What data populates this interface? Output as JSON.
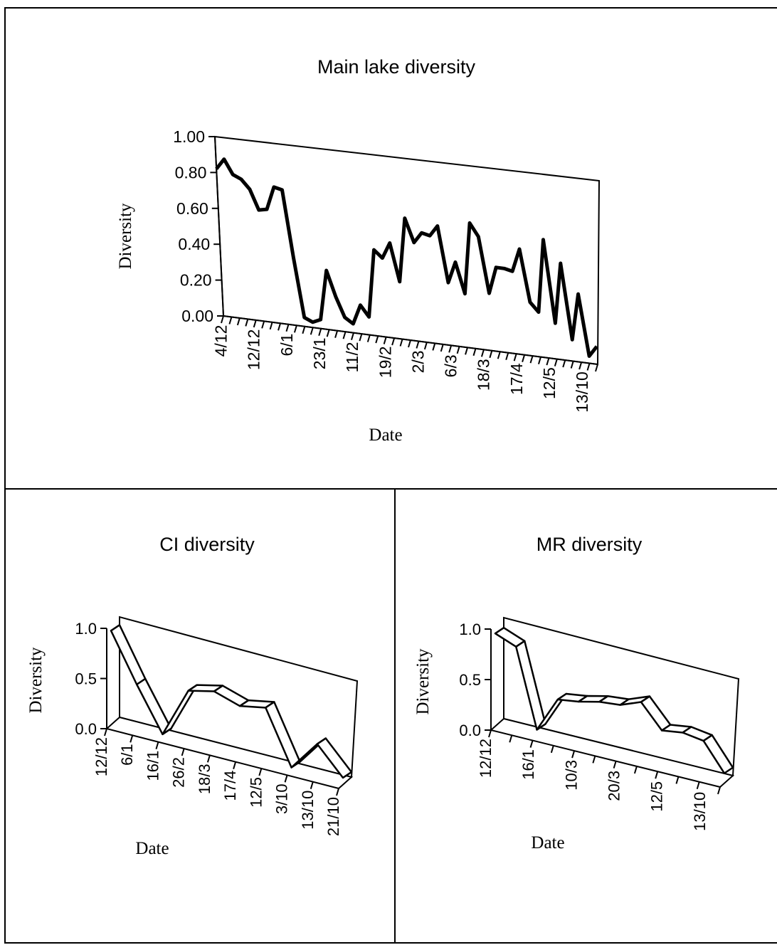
{
  "chart_data": [
    {
      "type": "line",
      "title": "Main lake diversity",
      "xlabel": "Date",
      "ylabel": "Diversity",
      "ylim": [
        0,
        1
      ],
      "y_ticks": [
        "0.00",
        "0.20",
        "0.40",
        "0.60",
        "0.80",
        "1.00"
      ],
      "x_tick_labels": [
        "4/12",
        "12/12",
        "6/1",
        "23/1",
        "11/2",
        "19/2",
        "2/3",
        "6/3",
        "18/3",
        "17/4",
        "12/5",
        "13/10"
      ],
      "grid": false,
      "legend": "none",
      "series": [
        {
          "color": "#000000",
          "values": [
            0.82,
            0.88,
            0.8,
            0.78,
            0.73,
            0.62,
            0.63,
            0.76,
            0.75,
            0.38,
            0.05,
            0.03,
            0.05,
            0.33,
            0.19,
            0.08,
            0.05,
            0.16,
            0.1,
            0.48,
            0.44,
            0.53,
            0.32,
            0.68,
            0.55,
            0.61,
            0.6,
            0.66,
            0.35,
            0.47,
            0.3,
            0.7,
            0.63,
            0.32,
            0.47,
            0.47,
            0.46,
            0.59,
            0.3,
            0.25,
            0.66,
            0.2,
            0.54,
            0.12,
            0.38,
            0.04,
            0.1
          ]
        }
      ]
    },
    {
      "type": "line",
      "title": "CI diversity",
      "xlabel": "Date",
      "ylabel": "Diversity",
      "ylim": [
        0,
        1
      ],
      "y_ticks": [
        "0.0",
        "0.5",
        "1.0"
      ],
      "x_tick_labels": [
        "12/12",
        "6/1",
        "16/1",
        "26/2",
        "18/3",
        "17/4",
        "12/5",
        "3/10",
        "13/10",
        "21/10"
      ],
      "grid": false,
      "legend": "none",
      "series": [
        {
          "color": "#ffffff",
          "values": [
            0.92,
            0.45,
            0.02,
            0.52,
            0.58,
            0.5,
            0.55,
            0.02,
            0.32,
            0.05
          ]
        }
      ]
    },
    {
      "type": "line",
      "title": "MR diversity",
      "xlabel": "Date",
      "ylabel": "Diversity",
      "ylim": [
        0,
        1
      ],
      "y_ticks": [
        "0.0",
        "0.5",
        "1.0"
      ],
      "x_tick_labels": [
        "12/12",
        "16/1",
        "10/3",
        "20/3",
        "12/5",
        "13/10"
      ],
      "grid": false,
      "legend": "none",
      "series": [
        {
          "color": "#ffffff",
          "values": [
            0.9,
            0.82,
            0.05,
            0.4,
            0.43,
            0.48,
            0.5,
            0.58,
            0.35,
            0.38,
            0.35,
            0.08
          ]
        }
      ]
    }
  ]
}
